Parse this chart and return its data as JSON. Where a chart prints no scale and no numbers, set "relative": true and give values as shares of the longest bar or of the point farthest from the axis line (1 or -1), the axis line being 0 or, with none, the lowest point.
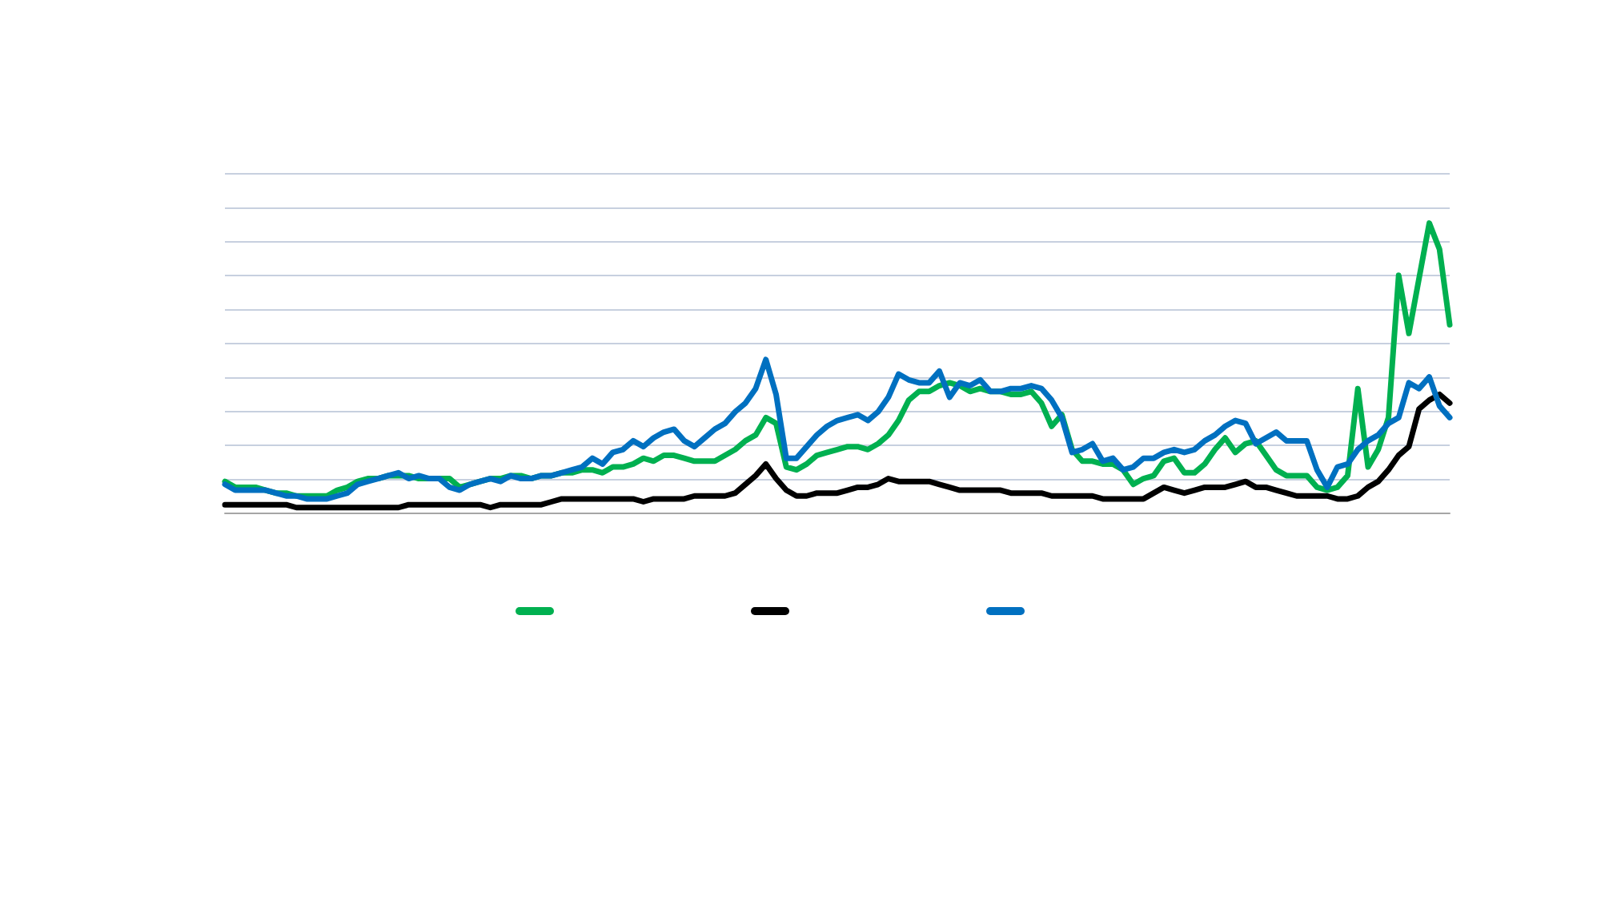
{
  "chart_data": {
    "type": "line",
    "relative": true,
    "grid": true,
    "marker": "none",
    "line_style": "solid",
    "categories": [
      null,
      null,
      null,
      null,
      null,
      null,
      null,
      null,
      null,
      null,
      null,
      null,
      null,
      null,
      null,
      null,
      null,
      null,
      null,
      null,
      null,
      null,
      null,
      null,
      null,
      null,
      null,
      null,
      null,
      null,
      null,
      null,
      null,
      null,
      null,
      null,
      null,
      null,
      null,
      null,
      null,
      null,
      null,
      null,
      null,
      null,
      null,
      null,
      null,
      null,
      null,
      null,
      null,
      null,
      null,
      null,
      null,
      null,
      null,
      null,
      null,
      null,
      null,
      null,
      null,
      null,
      null,
      null,
      null,
      null,
      null,
      null,
      null,
      null,
      null,
      null,
      null,
      null,
      null,
      null,
      null,
      null,
      null,
      null,
      null,
      null,
      null,
      null,
      null,
      null,
      null,
      null,
      null,
      null,
      null,
      null,
      null,
      null,
      null,
      null,
      null,
      null,
      null,
      null,
      null,
      null,
      null,
      null,
      null,
      null,
      null,
      null,
      null,
      null,
      null,
      null,
      null,
      null,
      null,
      null,
      null
    ],
    "series": [
      {
        "color": "#00b050",
        "values": [
          0.11,
          0.09,
          0.09,
          0.09,
          0.08,
          0.07,
          0.07,
          0.06,
          0.06,
          0.06,
          0.06,
          0.08,
          0.09,
          0.11,
          0.12,
          0.12,
          0.13,
          0.13,
          0.13,
          0.12,
          0.12,
          0.12,
          0.12,
          0.09,
          0.1,
          0.11,
          0.12,
          0.12,
          0.13,
          0.13,
          0.12,
          0.13,
          0.13,
          0.14,
          0.14,
          0.15,
          0.15,
          0.14,
          0.16,
          0.16,
          0.17,
          0.19,
          0.18,
          0.2,
          0.2,
          0.19,
          0.18,
          0.18,
          0.18,
          0.2,
          0.22,
          0.25,
          0.27,
          0.33,
          0.31,
          0.16,
          0.15,
          0.17,
          0.2,
          0.21,
          0.22,
          0.23,
          0.23,
          0.22,
          0.24,
          0.27,
          0.32,
          0.39,
          0.42,
          0.42,
          0.44,
          0.45,
          0.44,
          0.42,
          0.43,
          0.42,
          0.42,
          0.41,
          0.41,
          0.42,
          0.38,
          0.3,
          0.34,
          0.22,
          0.18,
          0.18,
          0.17,
          0.17,
          0.15,
          0.1,
          0.12,
          0.13,
          0.18,
          0.19,
          0.14,
          0.14,
          0.17,
          0.22,
          0.26,
          0.21,
          0.24,
          0.25,
          0.2,
          0.15,
          0.13,
          0.13,
          0.13,
          0.09,
          0.08,
          0.09,
          0.13,
          0.43,
          0.16,
          0.22,
          0.33,
          0.82,
          0.62,
          0.81,
          1,
          0.91,
          0.65
        ]
      },
      {
        "color": "#000000",
        "values": [
          0.03,
          0.03,
          0.03,
          0.03,
          0.03,
          0.03,
          0.03,
          0.02,
          0.02,
          0.02,
          0.02,
          0.02,
          0.02,
          0.02,
          0.02,
          0.02,
          0.02,
          0.02,
          0.03,
          0.03,
          0.03,
          0.03,
          0.03,
          0.03,
          0.03,
          0.03,
          0.02,
          0.03,
          0.03,
          0.03,
          0.03,
          0.03,
          0.04,
          0.05,
          0.05,
          0.05,
          0.05,
          0.05,
          0.05,
          0.05,
          0.05,
          0.04,
          0.05,
          0.05,
          0.05,
          0.05,
          0.06,
          0.06,
          0.06,
          0.06,
          0.07,
          0.1,
          0.13,
          0.17,
          0.12,
          0.08,
          0.06,
          0.06,
          0.07,
          0.07,
          0.07,
          0.08,
          0.09,
          0.09,
          0.1,
          0.12,
          0.11,
          0.11,
          0.11,
          0.11,
          0.1,
          0.09,
          0.08,
          0.08,
          0.08,
          0.08,
          0.08,
          0.07,
          0.07,
          0.07,
          0.07,
          0.06,
          0.06,
          0.06,
          0.06,
          0.06,
          0.05,
          0.05,
          0.05,
          0.05,
          0.05,
          0.07,
          0.09,
          0.08,
          0.07,
          0.08,
          0.09,
          0.09,
          0.09,
          0.1,
          0.11,
          0.09,
          0.09,
          0.08,
          0.07,
          0.06,
          0.06,
          0.06,
          0.06,
          0.05,
          0.05,
          0.06,
          0.09,
          0.11,
          0.15,
          0.2,
          0.23,
          0.36,
          0.39,
          0.41,
          0.38
        ]
      },
      {
        "color": "#0070c0",
        "values": [
          0.1,
          0.08,
          0.08,
          0.08,
          0.08,
          0.07,
          0.06,
          0.06,
          0.05,
          0.05,
          0.05,
          0.06,
          0.07,
          0.1,
          0.11,
          0.12,
          0.13,
          0.14,
          0.12,
          0.13,
          0.12,
          0.12,
          0.09,
          0.08,
          0.1,
          0.11,
          0.12,
          0.11,
          0.13,
          0.12,
          0.12,
          0.13,
          0.13,
          0.14,
          0.15,
          0.16,
          0.19,
          0.17,
          0.21,
          0.22,
          0.25,
          0.23,
          0.26,
          0.28,
          0.29,
          0.25,
          0.23,
          0.26,
          0.29,
          0.31,
          0.35,
          0.38,
          0.43,
          0.53,
          0.41,
          0.19,
          0.19,
          0.23,
          0.27,
          0.3,
          0.32,
          0.33,
          0.34,
          0.32,
          0.35,
          0.4,
          0.48,
          0.46,
          0.45,
          0.45,
          0.49,
          0.4,
          0.45,
          0.44,
          0.46,
          0.42,
          0.42,
          0.43,
          0.43,
          0.44,
          0.43,
          0.39,
          0.33,
          0.21,
          0.22,
          0.24,
          0.18,
          0.19,
          0.15,
          0.16,
          0.19,
          0.19,
          0.21,
          0.22,
          0.21,
          0.22,
          0.25,
          0.27,
          0.3,
          0.32,
          0.31,
          0.24,
          0.26,
          0.28,
          0.25,
          0.25,
          0.25,
          0.15,
          0.09,
          0.16,
          0.17,
          0.22,
          0.25,
          0.27,
          0.31,
          0.33,
          0.45,
          0.43,
          0.47,
          0.37,
          0.33
        ]
      }
    ]
  }
}
